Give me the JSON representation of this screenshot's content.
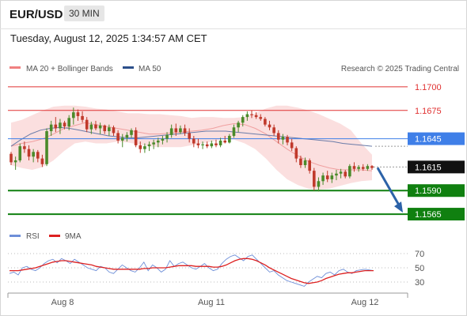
{
  "header": {
    "symbol": "EUR/USD",
    "timeframe": "30 MIN",
    "timestamp": "Tuesday, August 12, 2025 1:34:57 AM CET"
  },
  "legend": {
    "ma20_bb": "MA 20 + Bollinger Bands",
    "ma50": "MA 50",
    "credit": "Research © 2025 Trading Central",
    "rsi": "RSI",
    "rsi_ma": "9MA"
  },
  "colors": {
    "resistance": "#e03030",
    "support": "#108010",
    "pivot": "#3f7fe8",
    "current": "#111111",
    "bull_candle": "#4a8a2a",
    "bear_candle": "#c0392b",
    "bands": "#fbdcdc",
    "ma50": "#6a7ba8",
    "rsi": "#6e8fd8",
    "rsi_ma": "#dd2020",
    "arrow": "#2c62a8"
  },
  "chart_data": [
    {
      "type": "line",
      "title": "",
      "x_labels": [
        "Aug 8",
        "Aug 11",
        "Aug 12"
      ],
      "levels": [
        {
          "value": 1.17,
          "label": "1.1700",
          "kind": "resistance"
        },
        {
          "value": 1.1675,
          "label": "1.1675",
          "kind": "resistance"
        },
        {
          "value": 1.1645,
          "label": "1.1645",
          "kind": "pivot"
        },
        {
          "value": 1.1615,
          "label": "1.1615",
          "kind": "current"
        },
        {
          "value": 1.159,
          "label": "1.1590",
          "kind": "support"
        },
        {
          "value": 1.1565,
          "label": "1.1565",
          "kind": "support"
        }
      ],
      "candles": [
        [
          1.1629,
          1.1631,
          1.1617,
          1.162
        ],
        [
          1.162,
          1.1626,
          1.1612,
          1.1622
        ],
        [
          1.1622,
          1.164,
          1.162,
          1.1637
        ],
        [
          1.1637,
          1.1642,
          1.163,
          1.1634
        ],
        [
          1.1634,
          1.1638,
          1.1622,
          1.1626
        ],
        [
          1.1626,
          1.1634,
          1.162,
          1.1631
        ],
        [
          1.1631,
          1.1633,
          1.162,
          1.1624
        ],
        [
          1.1624,
          1.1628,
          1.1615,
          1.1618
        ],
        [
          1.1618,
          1.1656,
          1.1616,
          1.1653
        ],
        [
          1.1653,
          1.1664,
          1.1648,
          1.166
        ],
        [
          1.166,
          1.1668,
          1.1652,
          1.1656
        ],
        [
          1.1656,
          1.1666,
          1.165,
          1.1662
        ],
        [
          1.1662,
          1.1664,
          1.1655,
          1.1658
        ],
        [
          1.1658,
          1.167,
          1.1654,
          1.1667
        ],
        [
          1.1667,
          1.1678,
          1.166,
          1.1673
        ],
        [
          1.1673,
          1.1676,
          1.1664,
          1.1669
        ],
        [
          1.1669,
          1.1674,
          1.1662,
          1.1665
        ],
        [
          1.1665,
          1.1668,
          1.1652,
          1.1655
        ],
        [
          1.1655,
          1.1663,
          1.165,
          1.166
        ],
        [
          1.166,
          1.1664,
          1.1654,
          1.1656
        ],
        [
          1.1656,
          1.1662,
          1.165,
          1.1659
        ],
        [
          1.1659,
          1.166,
          1.165,
          1.1653
        ],
        [
          1.1653,
          1.166,
          1.1648,
          1.1657
        ],
        [
          1.1657,
          1.1659,
          1.1648,
          1.1651
        ],
        [
          1.1651,
          1.1654,
          1.164,
          1.1643
        ],
        [
          1.1643,
          1.165,
          1.1636,
          1.1646
        ],
        [
          1.1646,
          1.1652,
          1.1642,
          1.1649
        ],
        [
          1.1649,
          1.1656,
          1.1646,
          1.1654
        ],
        [
          1.1654,
          1.1657,
          1.1636,
          1.1638
        ],
        [
          1.1638,
          1.1642,
          1.163,
          1.1634
        ],
        [
          1.1634,
          1.164,
          1.163,
          1.1637
        ],
        [
          1.1637,
          1.1642,
          1.1632,
          1.1639
        ],
        [
          1.1639,
          1.1644,
          1.1634,
          1.1641
        ],
        [
          1.1641,
          1.1646,
          1.1636,
          1.1643
        ],
        [
          1.1643,
          1.1648,
          1.1639,
          1.1645
        ],
        [
          1.1645,
          1.1652,
          1.1641,
          1.1649
        ],
        [
          1.1649,
          1.166,
          1.1646,
          1.1656
        ],
        [
          1.1656,
          1.1661,
          1.1648,
          1.1652
        ],
        [
          1.1652,
          1.1659,
          1.165,
          1.1656
        ],
        [
          1.1656,
          1.166,
          1.1648,
          1.1651
        ],
        [
          1.1651,
          1.1656,
          1.1641,
          1.1645
        ],
        [
          1.1645,
          1.1648,
          1.1636,
          1.164
        ],
        [
          1.164,
          1.1645,
          1.1635,
          1.1638
        ],
        [
          1.1638,
          1.1642,
          1.1634,
          1.1639
        ],
        [
          1.1639,
          1.1642,
          1.1635,
          1.1637
        ],
        [
          1.1637,
          1.1643,
          1.1635,
          1.164
        ],
        [
          1.164,
          1.1644,
          1.1636,
          1.1638
        ],
        [
          1.1638,
          1.1646,
          1.1636,
          1.1643
        ],
        [
          1.1643,
          1.1648,
          1.164,
          1.1641
        ],
        [
          1.1641,
          1.165,
          1.164,
          1.1648
        ],
        [
          1.1648,
          1.166,
          1.1646,
          1.1657
        ],
        [
          1.1657,
          1.1664,
          1.1652,
          1.1662
        ],
        [
          1.1662,
          1.167,
          1.1658,
          1.1668
        ],
        [
          1.1668,
          1.1674,
          1.1664,
          1.1671
        ],
        [
          1.1671,
          1.1675,
          1.1667,
          1.167
        ],
        [
          1.167,
          1.1673,
          1.1666,
          1.1668
        ],
        [
          1.1668,
          1.1671,
          1.1664,
          1.1666
        ],
        [
          1.1666,
          1.1668,
          1.1658,
          1.166
        ],
        [
          1.166,
          1.1664,
          1.1654,
          1.1657
        ],
        [
          1.1657,
          1.166,
          1.1648,
          1.1651
        ],
        [
          1.1651,
          1.1654,
          1.164,
          1.1644
        ],
        [
          1.1644,
          1.165,
          1.1639,
          1.1647
        ],
        [
          1.1647,
          1.1649,
          1.1638,
          1.1641
        ],
        [
          1.1641,
          1.1645,
          1.1632,
          1.1635
        ],
        [
          1.1635,
          1.1637,
          1.162,
          1.1624
        ],
        [
          1.1624,
          1.1627,
          1.1614,
          1.1617
        ],
        [
          1.1617,
          1.1625,
          1.1614,
          1.1622
        ],
        [
          1.1622,
          1.1624,
          1.1608,
          1.1611
        ],
        [
          1.1611,
          1.1614,
          1.159,
          1.1594
        ],
        [
          1.1594,
          1.1604,
          1.1589,
          1.16
        ],
        [
          1.16,
          1.1609,
          1.1596,
          1.1606
        ],
        [
          1.1606,
          1.1611,
          1.1599,
          1.1602
        ],
        [
          1.1602,
          1.1609,
          1.1598,
          1.1606
        ],
        [
          1.1606,
          1.1612,
          1.1601,
          1.1608
        ],
        [
          1.1608,
          1.1613,
          1.1603,
          1.161
        ],
        [
          1.161,
          1.1612,
          1.1603,
          1.1605
        ],
        [
          1.1605,
          1.1618,
          1.1603,
          1.1616
        ],
        [
          1.1616,
          1.162,
          1.161,
          1.1613
        ],
        [
          1.1613,
          1.1617,
          1.161,
          1.1615
        ],
        [
          1.1615,
          1.1618,
          1.1611,
          1.1613
        ],
        [
          1.1613,
          1.1618,
          1.1611,
          1.1616
        ],
        [
          1.1616,
          1.1617,
          1.1612,
          1.1614
        ]
      ],
      "bands": {
        "upper": [
          1.1662,
          1.1665,
          1.167,
          1.1675,
          1.1679,
          1.168,
          1.168,
          1.1679,
          1.1677,
          1.1676,
          1.1674,
          1.1672,
          1.1672,
          1.1671,
          1.1671,
          1.167,
          1.1669,
          1.1667,
          1.1668,
          1.1668,
          1.1667,
          1.1667,
          1.1668,
          1.1672,
          1.1677,
          1.168,
          1.168,
          1.1678,
          1.1675,
          1.1671,
          1.1666,
          1.1661,
          1.1654,
          1.164,
          1.1628
        ],
        "lower": [
          1.1617,
          1.1614,
          1.1612,
          1.1615,
          1.1622,
          1.1632,
          1.164,
          1.1642,
          1.164,
          1.164,
          1.1642,
          1.1641,
          1.1639,
          1.1637,
          1.1636,
          1.1636,
          1.1636,
          1.1638,
          1.164,
          1.1642,
          1.1645,
          1.1644,
          1.164,
          1.1634,
          1.1624,
          1.1612,
          1.1602,
          1.1596,
          1.1592,
          1.1591,
          1.1592,
          1.1595,
          1.1598,
          1.16,
          1.1601
        ],
        "middle": [
          1.1637,
          1.164,
          1.1642,
          1.1645,
          1.165,
          1.1656,
          1.1659,
          1.1662,
          1.166,
          1.1658,
          1.1656,
          1.1654,
          1.1652,
          1.165,
          1.165,
          1.1651,
          1.1652,
          1.1653,
          1.1654,
          1.1656,
          1.1659,
          1.1661,
          1.166,
          1.1656,
          1.165,
          1.1642,
          1.1634,
          1.1627,
          1.1621,
          1.1617,
          1.1614,
          1.1612,
          1.1612,
          1.1612,
          1.1611
        ]
      },
      "ma50": [
        1.1637,
        1.1644,
        1.165,
        1.1654,
        1.1656,
        1.1657,
        1.1656,
        1.1654,
        1.1652,
        1.165,
        1.1648,
        1.1647,
        1.1646,
        1.1646,
        1.1647,
        1.1648,
        1.1649,
        1.165,
        1.1651,
        1.1652,
        1.1653,
        1.1653,
        1.1653,
        1.1652,
        1.1651,
        1.165,
        1.1649,
        1.1648,
        1.1647,
        1.1646,
        1.1645,
        1.1644,
        1.1643,
        1.1642,
        1.164,
        1.1639,
        1.1638,
        1.1637
      ],
      "projection": {
        "from": 1.1615,
        "to": 1.1565
      }
    },
    {
      "type": "line",
      "title": "",
      "y_ticks": [
        70,
        50,
        30
      ],
      "series": [
        {
          "name": "RSI",
          "values": [
            42,
            44,
            40,
            50,
            52,
            48,
            46,
            50,
            56,
            60,
            62,
            57,
            63,
            60,
            56,
            62,
            58,
            54,
            50,
            48,
            46,
            52,
            50,
            44,
            42,
            48,
            54,
            50,
            46,
            44,
            50,
            58,
            46,
            54,
            50,
            44,
            48,
            60,
            52,
            56,
            58,
            54,
            50,
            48,
            52,
            56,
            50,
            46,
            48,
            56,
            62,
            66,
            68,
            64,
            60,
            66,
            68,
            62,
            56,
            50,
            44,
            46,
            40,
            36,
            32,
            30,
            28,
            26,
            24,
            30,
            34,
            38,
            36,
            42,
            44,
            40,
            46,
            48,
            44,
            42,
            46,
            47,
            48,
            47,
            46
          ]
        },
        {
          "name": "9MA",
          "values": [
            46,
            46,
            46,
            47,
            48,
            49,
            50,
            52,
            54,
            56,
            58,
            59,
            60,
            60,
            59,
            58,
            57,
            56,
            55,
            54,
            52,
            51,
            50,
            49,
            48,
            48,
            48,
            48,
            48,
            48,
            48,
            49,
            49,
            50,
            50,
            50,
            50,
            51,
            52,
            53,
            53,
            53,
            53,
            52,
            52,
            52,
            52,
            51,
            51,
            52,
            54,
            57,
            60,
            62,
            63,
            63,
            62,
            60,
            57,
            54,
            50,
            47,
            44,
            41,
            38,
            35,
            33,
            31,
            29,
            28,
            29,
            30,
            32,
            35,
            37,
            39,
            41,
            42,
            43,
            43,
            44,
            45,
            46,
            46,
            46
          ]
        }
      ]
    }
  ]
}
